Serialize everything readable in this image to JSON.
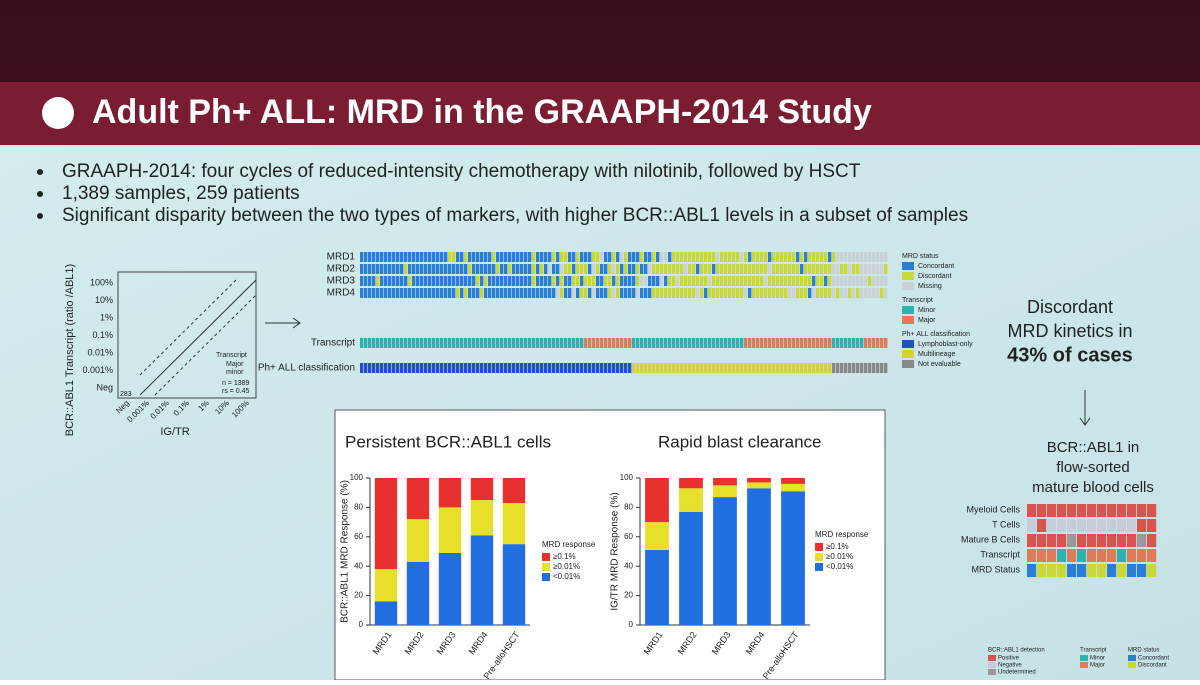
{
  "slide": {
    "title": "Adult Ph+ ALL: MRD in the GRAAPH-2014 Study",
    "bullets": [
      "GRAAPH-2014: four cycles of reduced-intensity chemotherapy with nilotinib, followed by HSCT",
      "1,389 samples, 259 patients",
      "Significant disparity between the two types of markers, with higher BCR::ABL1 levels in a subset of samples"
    ]
  },
  "scatter": {
    "y_label": "BCR::ABL1 Transcript (ratio /ABL1)",
    "x_label": "IG/TR",
    "y_ticks": [
      "100%",
      "10%",
      "1%",
      "0.1%",
      "0.01%",
      "0.001%",
      "Neg"
    ],
    "x_ticks": [
      "Neg",
      "0.001%",
      "0.01%",
      "0.1%",
      "1%",
      "10%",
      "100%"
    ],
    "legend_title": "Transcript",
    "legend": [
      "Major",
      "minor"
    ],
    "n": "n = 1389",
    "rs": "rs = 0.45",
    "neg_count": "283"
  },
  "heatmap": {
    "rows": [
      "MRD1",
      "MRD2",
      "MRD3",
      "MRD4",
      "Transcript",
      "Ph+ ALL classification"
    ],
    "legend": [
      {
        "title": "MRD status",
        "items": [
          "Concordant",
          "Discordant",
          "Missing"
        ]
      },
      {
        "title": "Transcript",
        "items": [
          "Minor",
          "Major"
        ]
      },
      {
        "title": "Ph+ ALL classification",
        "items": [
          "Lymphoblast-only",
          "Multilineage",
          "Not evaluable"
        ]
      }
    ]
  },
  "callout": {
    "lines": [
      "Discordant",
      "MRD kinetics in",
      "43% of cases"
    ]
  },
  "flow": {
    "title": [
      "BCR::ABL1 in",
      "flow-sorted",
      "mature blood cells"
    ],
    "rows": [
      "Myeloid Cells",
      "T Cells",
      "Mature B Cells",
      "Transcript",
      "MRD Status"
    ],
    "legend": [
      {
        "title": "BCR::ABL1 detection",
        "items": [
          "Positive",
          "Negative",
          "Undetermined"
        ]
      },
      {
        "title": "Transcript",
        "items": [
          "Minor",
          "Major"
        ]
      },
      {
        "title": "MRD status",
        "items": [
          "Concordant",
          "Discordant"
        ]
      }
    ]
  },
  "chart_data": [
    {
      "type": "bar",
      "stacked": true,
      "title": "Persistent BCR::ABL1 cells",
      "y_label": "BCR::ABL1 MRD Response (%)",
      "legend_title": "MRD response",
      "categories": [
        "MRD1",
        "MRD2",
        "MRD3",
        "MRD4",
        "Pre-alloHSCT"
      ],
      "ylim": [
        0,
        100
      ],
      "yticks": [
        0,
        20,
        40,
        60,
        80,
        100
      ],
      "series": [
        {
          "name": "<0.01%",
          "color": "#1f6fe0",
          "values": [
            16,
            43,
            49,
            61,
            55
          ]
        },
        {
          "name": "≥0.01%",
          "color": "#e6e02a",
          "values": [
            22,
            29,
            31,
            24,
            28
          ]
        },
        {
          "name": "≥0.1%",
          "color": "#e8312f",
          "values": [
            62,
            28,
            20,
            15,
            17
          ]
        }
      ]
    },
    {
      "type": "bar",
      "stacked": true,
      "title": "Rapid blast clearance",
      "y_label": "IG/TR MRD Response (%)",
      "legend_title": "MRD response",
      "categories": [
        "MRD1",
        "MRD2",
        "MRD3",
        "MRD4",
        "Pre-alloHSCT"
      ],
      "ylim": [
        0,
        100
      ],
      "yticks": [
        0,
        20,
        40,
        60,
        80,
        100
      ],
      "series": [
        {
          "name": "<0.01%",
          "color": "#1f6fe0",
          "values": [
            51,
            77,
            87,
            93,
            91
          ]
        },
        {
          "name": "≥0.01%",
          "color": "#e6e02a",
          "values": [
            19,
            16,
            8,
            4,
            5
          ]
        },
        {
          "name": "≥0.1%",
          "color": "#e8312f",
          "values": [
            30,
            7,
            5,
            3,
            4
          ]
        }
      ]
    }
  ]
}
